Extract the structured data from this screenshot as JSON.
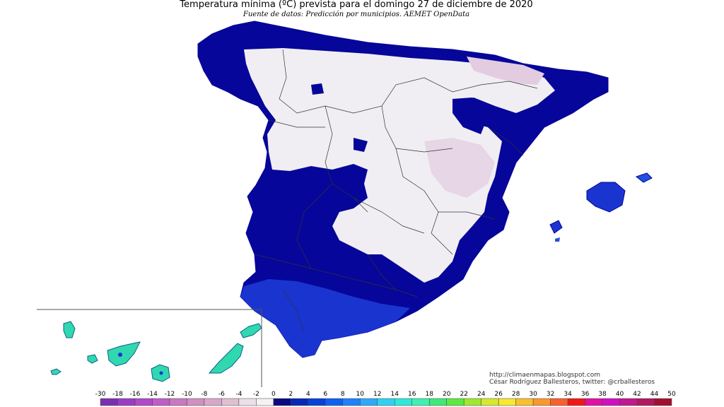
{
  "header": {
    "title": "Temperatura mínima (ºC) prevista para el domingo 27 de diciembre de 2020",
    "subtitle": "Fuente de datos: Predicción por municipios. AEMET OpenData"
  },
  "credits": {
    "line1": "http://climaenmapas.blogspot.com",
    "line2": "César Rodríguez Ballesteros, twitter: @crballesteros"
  },
  "legend": {
    "labels": [
      "-30",
      "-18",
      "-16",
      "-14",
      "-12",
      "-10",
      "-8",
      "-6",
      "-4",
      "-2",
      "0",
      "2",
      "4",
      "6",
      "8",
      "10",
      "12",
      "14",
      "16",
      "18",
      "20",
      "22",
      "24",
      "26",
      "28",
      "30",
      "32",
      "34",
      "36",
      "38",
      "40",
      "42",
      "44",
      "50"
    ],
    "colors": [
      "#7b2fb0",
      "#9b3cc4",
      "#b04ac8",
      "#c05cc8",
      "#c878c0",
      "#d090c0",
      "#d8a8c8",
      "#e0c0d0",
      "#ebe0e8",
      "#f4f0f4",
      "#0a0a80",
      "#0828b4",
      "#0840d8",
      "#1060f0",
      "#2080f8",
      "#30a8f8",
      "#30d0f0",
      "#30e8d8",
      "#40f0b0",
      "#40e878",
      "#60e840",
      "#a0e830",
      "#d8e830",
      "#f8e830",
      "#f8c030",
      "#f89830",
      "#f86030",
      "#f01818",
      "#e010a0",
      "#d010c0",
      "#c01890",
      "#b01860",
      "#a01030"
    ]
  },
  "colors": {
    "dark_blue": "#06069a",
    "mid_blue": "#1a34d0",
    "light_gray": "#f0eef2",
    "pinkish": "#e3cce0",
    "canary_teal": "#30d8b0"
  }
}
